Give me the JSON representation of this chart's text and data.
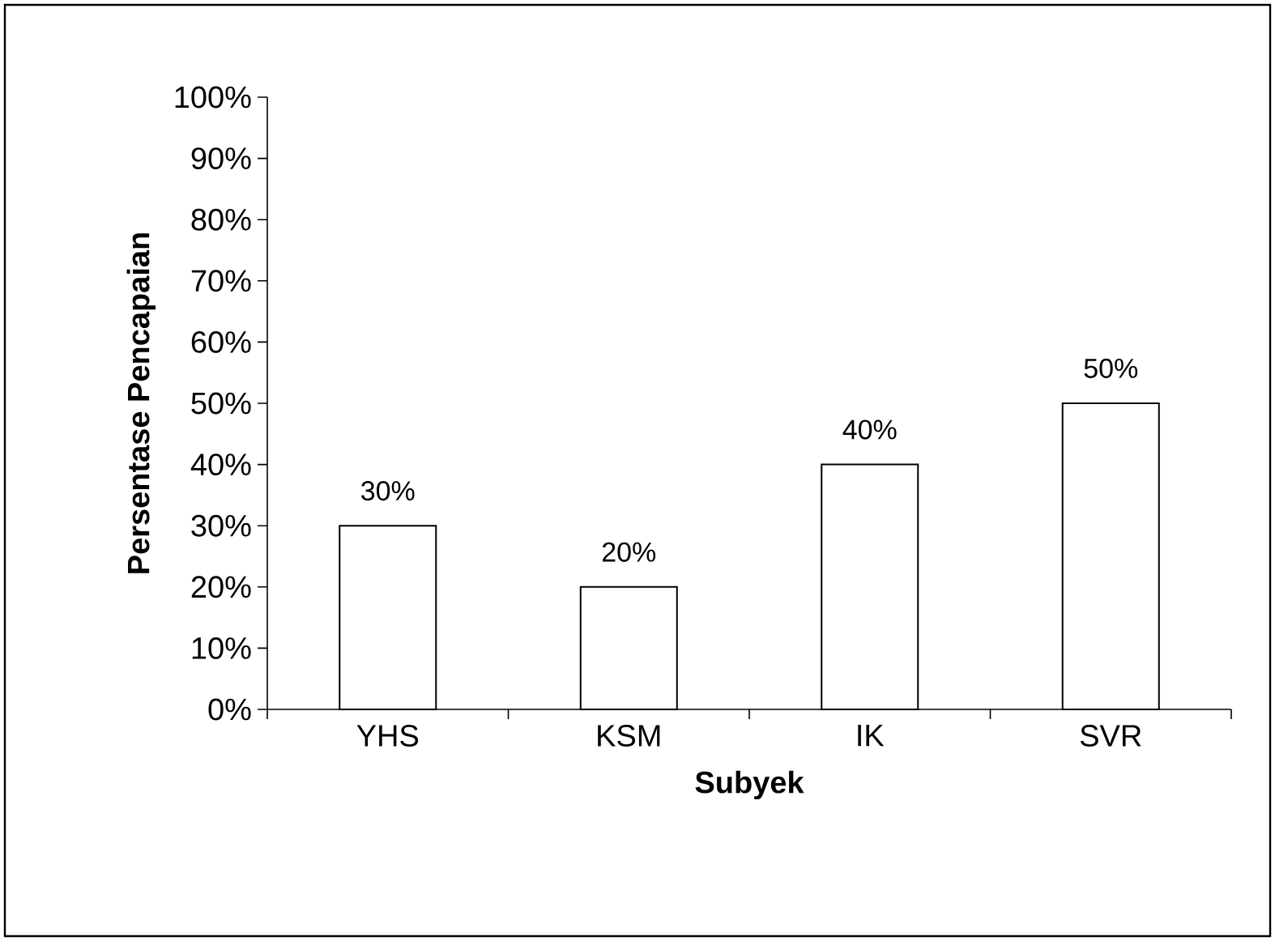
{
  "chart_data": {
    "type": "bar",
    "xlabel": "Subyek",
    "ylabel": "Persentase Pencapaian",
    "categories": [
      "YHS",
      "KSM",
      "IK",
      "SVR"
    ],
    "values": [
      30,
      20,
      40,
      50
    ],
    "value_labels": [
      "30%",
      "20%",
      "40%",
      "50%"
    ],
    "color": "#ffffff",
    "ylim": [
      0,
      100
    ],
    "yticks": [
      {
        "value": 0,
        "label": "0%"
      },
      {
        "value": 10,
        "label": "10%"
      },
      {
        "value": 20,
        "label": "20%"
      },
      {
        "value": 30,
        "label": "30%"
      },
      {
        "value": 40,
        "label": "40%"
      },
      {
        "value": 50,
        "label": "50%"
      },
      {
        "value": 60,
        "label": "60%"
      },
      {
        "value": 70,
        "label": "70%"
      },
      {
        "value": 80,
        "label": "80%"
      },
      {
        "value": 90,
        "label": "90%"
      },
      {
        "value": 100,
        "label": "100%"
      }
    ],
    "data_labels": false
  }
}
